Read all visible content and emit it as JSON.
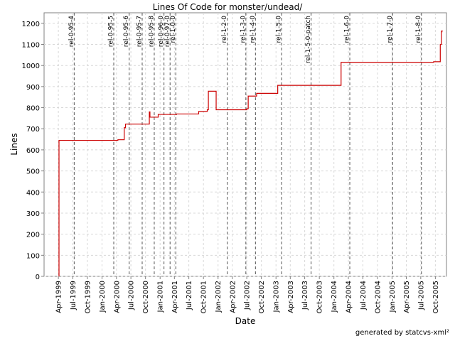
{
  "chart_data": {
    "type": "line",
    "title": "Lines Of Code for monster/undead/",
    "xlabel": "Date",
    "ylabel": "Lines",
    "ylim": [
      0,
      1250
    ],
    "yticks": [
      0,
      100,
      200,
      300,
      400,
      500,
      600,
      700,
      800,
      900,
      1000,
      1100,
      1200
    ],
    "xlim": [
      "1999-01-01",
      "2005-12-10"
    ],
    "xticks": [
      {
        "date": "1999-04-01",
        "label": "Apr-1999"
      },
      {
        "date": "1999-07-01",
        "label": "Jul-1999"
      },
      {
        "date": "1999-10-01",
        "label": "Oct-1999"
      },
      {
        "date": "2000-01-01",
        "label": "Jan-2000"
      },
      {
        "date": "2000-04-01",
        "label": "Apr-2000"
      },
      {
        "date": "2000-07-01",
        "label": "Jul-2000"
      },
      {
        "date": "2000-10-01",
        "label": "Oct-2000"
      },
      {
        "date": "2001-01-01",
        "label": "Jan-2001"
      },
      {
        "date": "2001-04-01",
        "label": "Apr-2001"
      },
      {
        "date": "2001-07-01",
        "label": "Jul-2001"
      },
      {
        "date": "2001-10-01",
        "label": "Oct-2001"
      },
      {
        "date": "2002-01-01",
        "label": "Jan-2002"
      },
      {
        "date": "2002-04-01",
        "label": "Apr-2002"
      },
      {
        "date": "2002-07-01",
        "label": "Jul-2002"
      },
      {
        "date": "2002-10-01",
        "label": "Oct-2002"
      },
      {
        "date": "2003-01-01",
        "label": "Jan-2003"
      },
      {
        "date": "2003-04-01",
        "label": "Apr-2003"
      },
      {
        "date": "2003-07-01",
        "label": "Jul-2003"
      },
      {
        "date": "2003-10-01",
        "label": "Oct-2003"
      },
      {
        "date": "2004-01-01",
        "label": "Jan-2004"
      },
      {
        "date": "2004-04-01",
        "label": "Apr-2004"
      },
      {
        "date": "2004-07-01",
        "label": "Jul-2004"
      },
      {
        "date": "2004-10-01",
        "label": "Oct-2004"
      },
      {
        "date": "2005-01-01",
        "label": "Jan-2005"
      },
      {
        "date": "2005-04-01",
        "label": "Apr-2005"
      },
      {
        "date": "2005-07-01",
        "label": "Jul-2005"
      },
      {
        "date": "2005-10-01",
        "label": "Oct-2005"
      }
    ],
    "grid": true,
    "series": [
      {
        "color": "#cc0000",
        "points": [
          [
            "1999-04-05",
            0
          ],
          [
            "1999-04-05",
            645
          ],
          [
            "2000-04-10",
            645
          ],
          [
            "2000-04-10",
            648
          ],
          [
            "2000-05-20",
            648
          ],
          [
            "2000-05-20",
            705
          ],
          [
            "2000-05-28",
            705
          ],
          [
            "2000-05-28",
            722
          ],
          [
            "2000-06-05",
            722
          ],
          [
            "2000-10-25",
            722
          ],
          [
            "2000-10-25",
            780
          ],
          [
            "2000-10-29",
            780
          ],
          [
            "2000-10-29",
            755
          ],
          [
            "2000-12-20",
            755
          ],
          [
            "2000-12-20",
            768
          ],
          [
            "2001-04-15",
            768
          ],
          [
            "2001-04-15",
            770
          ],
          [
            "2001-09-01",
            770
          ],
          [
            "2001-09-01",
            782
          ],
          [
            "2001-10-25",
            782
          ],
          [
            "2001-10-25",
            790
          ],
          [
            "2001-11-01",
            790
          ],
          [
            "2001-11-01",
            878
          ],
          [
            "2001-12-20",
            878
          ],
          [
            "2001-12-20",
            790
          ],
          [
            "2002-07-01",
            790
          ],
          [
            "2002-07-01",
            795
          ],
          [
            "2002-07-10",
            795
          ],
          [
            "2002-07-10",
            855
          ],
          [
            "2002-09-01",
            855
          ],
          [
            "2002-09-01",
            868
          ],
          [
            "2003-01-12",
            868
          ],
          [
            "2003-01-12",
            906
          ],
          [
            "2004-02-15",
            906
          ],
          [
            "2004-02-15",
            1015
          ],
          [
            "2005-09-20",
            1015
          ],
          [
            "2005-09-20",
            1018
          ],
          [
            "2005-11-01",
            1018
          ],
          [
            "2005-11-01",
            1100
          ],
          [
            "2005-11-08",
            1100
          ],
          [
            "2005-11-08",
            1160
          ],
          [
            "2005-11-12",
            1160
          ],
          [
            "2005-11-12",
            1168
          ]
        ]
      }
    ],
    "markers": [
      {
        "label": "rel-0-95-4",
        "date": "1999-07-10"
      },
      {
        "label": "rel-0-95-5",
        "date": "2000-03-15"
      },
      {
        "label": "rel-0-95-6",
        "date": "2000-06-20"
      },
      {
        "label": "rel-0-95-7",
        "date": "2000-09-10"
      },
      {
        "label": "rel-0-95-8",
        "date": "2000-11-25"
      },
      {
        "label": "rel-0-96-0",
        "date": "2001-01-25"
      },
      {
        "label": "rel-0-97-0",
        "date": "2001-03-05"
      },
      {
        "label": "rel-1-0-0",
        "date": "2001-04-10"
      },
      {
        "label": "rel-1-2-0",
        "date": "2002-02-28"
      },
      {
        "label": "rel-1-3-0",
        "date": "2002-06-25"
      },
      {
        "label": "rel-1-4-0",
        "date": "2002-08-25"
      },
      {
        "label": "rel-1-5-0",
        "date": "2003-02-05"
      },
      {
        "label": "rel-1-5-0-patch",
        "date": "2003-08-10"
      },
      {
        "label": "rel-1-6-0",
        "date": "2004-04-10"
      },
      {
        "label": "rel-1-7-0",
        "date": "2005-01-05"
      },
      {
        "label": "rel-1-8-0",
        "date": "2005-07-05"
      }
    ]
  },
  "footer": "generated by statcvs-xml²"
}
